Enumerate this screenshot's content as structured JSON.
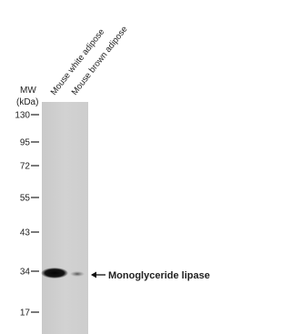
{
  "lanes": [
    "Mouse white adipose",
    "Mouse brown adipose"
  ],
  "mw_label": "MW",
  "mw_unit": "(kDa)",
  "markers": [
    130,
    95,
    72,
    55,
    43,
    34,
    17
  ],
  "target": "Monoglyceride lipase"
}
